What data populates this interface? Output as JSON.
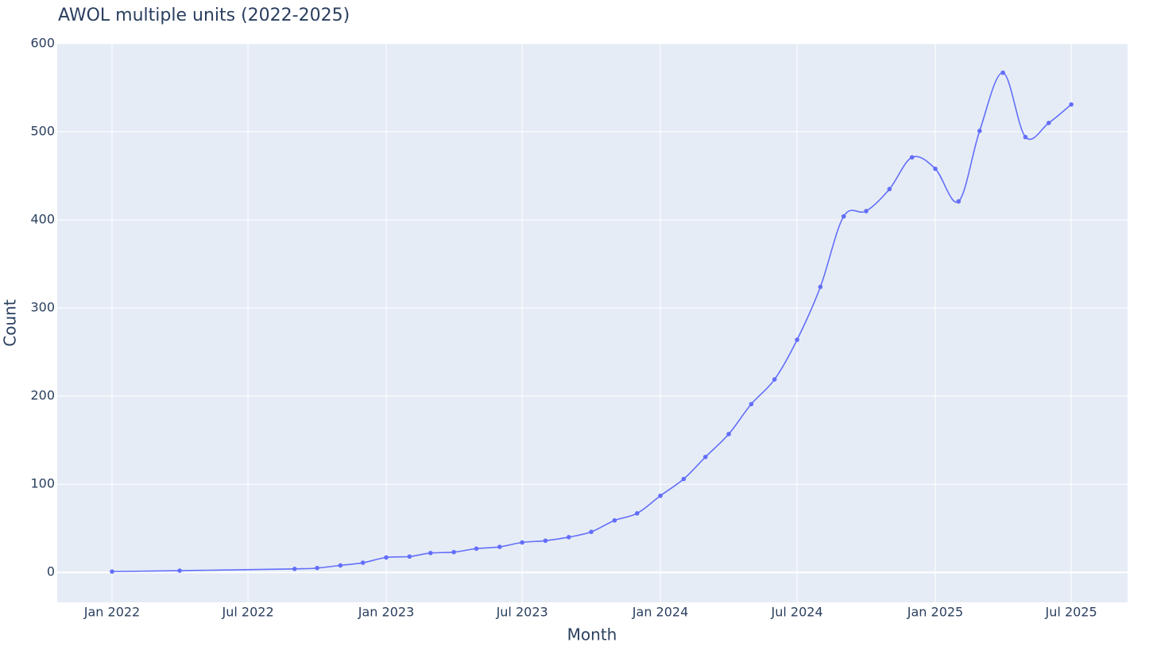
{
  "chart_data": {
    "type": "line",
    "title": "AWOL multiple units (2022-2025)",
    "x_label": "Month",
    "y_label": "Count",
    "x": [
      "2022-01",
      "2022-04",
      "2022-09",
      "2022-10",
      "2022-11",
      "2022-12",
      "2023-01",
      "2023-02",
      "2023-03",
      "2023-04",
      "2023-05",
      "2023-06",
      "2023-07",
      "2023-08",
      "2023-09",
      "2023-10",
      "2023-11",
      "2023-12",
      "2024-01",
      "2024-02",
      "2024-03",
      "2024-04",
      "2024-05",
      "2024-06",
      "2024-07",
      "2024-08",
      "2024-09",
      "2024-10",
      "2024-11",
      "2024-12",
      "2025-01",
      "2025-02",
      "2025-03",
      "2025-04",
      "2025-05",
      "2025-06",
      "2025-07"
    ],
    "values": [
      1,
      2,
      4,
      5,
      8,
      11,
      17,
      18,
      22,
      23,
      27,
      29,
      34,
      36,
      40,
      46,
      59,
      67,
      87,
      106,
      131,
      157,
      191,
      219,
      264,
      324,
      404,
      410,
      435,
      471,
      458,
      421,
      501,
      567,
      494,
      510,
      531
    ],
    "color": "#636efa",
    "xlim": [
      "2021-10-20",
      "2025-09-14"
    ],
    "xticks": [
      {
        "value": "2022-01",
        "label": "Jan 2022"
      },
      {
        "value": "2022-07",
        "label": "Jul 2022"
      },
      {
        "value": "2023-01",
        "label": "Jan 2023"
      },
      {
        "value": "2023-07",
        "label": "Jul 2023"
      },
      {
        "value": "2024-01",
        "label": "Jan 2024"
      },
      {
        "value": "2024-07",
        "label": "Jul 2024"
      },
      {
        "value": "2025-01",
        "label": "Jan 2025"
      },
      {
        "value": "2025-07",
        "label": "Jul 2025"
      }
    ],
    "ylim": [
      -34,
      600
    ],
    "yticks": [
      0,
      100,
      200,
      300,
      400,
      500,
      600
    ],
    "grid": true,
    "smooth": true
  }
}
